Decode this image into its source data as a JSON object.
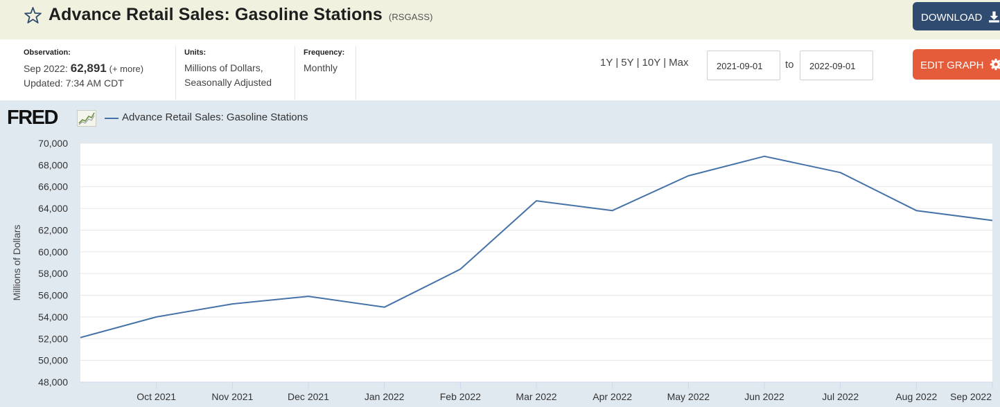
{
  "header": {
    "title": "Advance Retail Sales: Gasoline Stations",
    "series_id": "(RSGASS)",
    "download_label": "DOWNLOAD",
    "star_icon": "star-outline-icon",
    "download_icon": "download-icon"
  },
  "observation": {
    "label": "Observation:",
    "date": "Sep 2022:",
    "value": "62,891",
    "more": "(+ more)",
    "updated": "Updated: 7:34 AM CDT"
  },
  "units": {
    "label": "Units:",
    "line1": "Millions of Dollars,",
    "line2": "Seasonally Adjusted"
  },
  "frequency": {
    "label": "Frequency:",
    "value": "Monthly"
  },
  "range": {
    "options": [
      "1Y",
      "5Y",
      "10Y",
      "Max"
    ],
    "start_date": "2021-09-01",
    "to_label": "to",
    "end_date": "2022-09-01"
  },
  "edit_graph": {
    "label": "EDIT GRAPH",
    "icon": "gear-icon"
  },
  "logo": {
    "text": "FRED"
  },
  "colors": {
    "title_bar": "#f0f1df",
    "download_button": "#2f4b70",
    "edit_button": "#e45c3a",
    "chart_background": "#e1e9f0",
    "plot_background": "#ffffff",
    "series_line": "#4572a7"
  },
  "chart_data": {
    "type": "line",
    "title": "",
    "legend": "Advance Retail Sales: Gasoline Stations",
    "legend_placement": "top-left",
    "xlabel": "",
    "ylabel": "Millions of Dollars",
    "ylim": [
      48000,
      70000
    ],
    "y_ticks": [
      48000,
      50000,
      52000,
      54000,
      56000,
      58000,
      60000,
      62000,
      64000,
      66000,
      68000,
      70000
    ],
    "y_tick_labels": [
      "48,000",
      "50,000",
      "52,000",
      "54,000",
      "56,000",
      "58,000",
      "60,000",
      "62,000",
      "64,000",
      "66,000",
      "68,000",
      "70,000"
    ],
    "x_tick_labels": [
      "Oct 2021",
      "Nov 2021",
      "Dec 2021",
      "Jan 2022",
      "Feb 2022",
      "Mar 2022",
      "Apr 2022",
      "May 2022",
      "Jun 2022",
      "Jul 2022",
      "Aug 2022",
      "Sep 2022"
    ],
    "x": [
      "2021-09",
      "2021-10",
      "2021-11",
      "2021-12",
      "2022-01",
      "2022-02",
      "2022-03",
      "2022-04",
      "2022-05",
      "2022-06",
      "2022-07",
      "2022-08",
      "2022-09"
    ],
    "grid": true,
    "series": [
      {
        "name": "Advance Retail Sales: Gasoline Stations",
        "values": [
          52100,
          54000,
          55200,
          55900,
          54900,
          58400,
          64700,
          63800,
          67000,
          68800,
          67300,
          63800,
          62891
        ]
      }
    ]
  }
}
